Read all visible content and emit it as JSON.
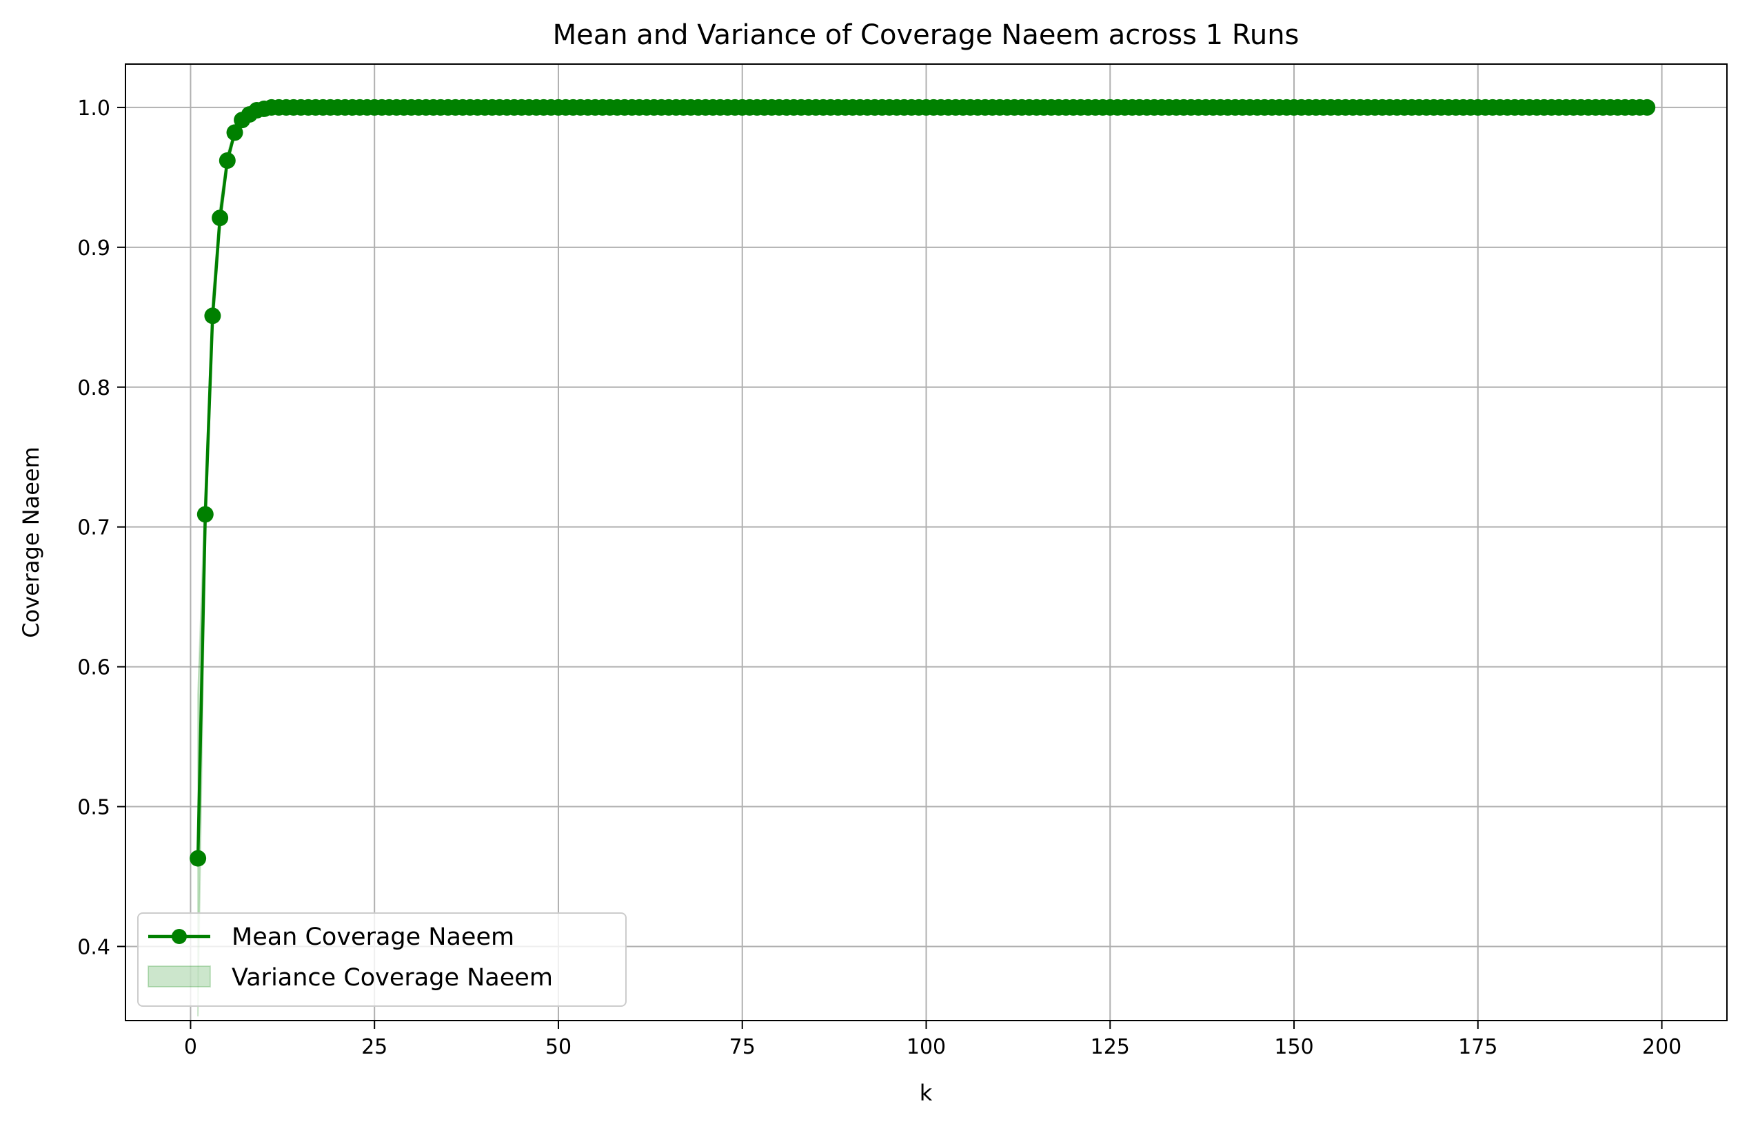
{
  "chart_data": {
    "type": "line",
    "title": "Mean and Variance of Coverage Naeem across 1 Runs",
    "xlabel": "k",
    "ylabel": "Coverage Naeem",
    "xlim": [
      -8.85,
      208.85
    ],
    "ylim": [
      0.347,
      1.031
    ],
    "xticks": [
      0,
      25,
      50,
      75,
      100,
      125,
      150,
      175,
      200
    ],
    "yticks": [
      0.4,
      0.5,
      0.6,
      0.7,
      0.8,
      0.9,
      1.0
    ],
    "xtick_labels": [
      "0",
      "25",
      "50",
      "75",
      "100",
      "125",
      "150",
      "175",
      "200"
    ],
    "ytick_labels": [
      "0.4",
      "0.5",
      "0.6",
      "0.7",
      "0.8",
      "0.9",
      "1.0"
    ],
    "grid": true,
    "legend_position": "lower-left",
    "colors": {
      "line": "#008000",
      "band": "#008000"
    },
    "series": [
      {
        "name": "Mean Coverage Naeem",
        "kind": "line-markers",
        "x_start": 1,
        "x_end": 198,
        "values_head": [
          0.463,
          0.709,
          0.851,
          0.921,
          0.962,
          0.982,
          0.991,
          0.995,
          0.998,
          0.999,
          1.0
        ],
        "plateau_value": 1.0
      },
      {
        "name": "Variance Coverage Naeem",
        "kind": "band",
        "lower_head": [
          0.35,
          0.69,
          0.838,
          0.912,
          0.957,
          0.98,
          0.99,
          0.995,
          0.998,
          0.999,
          1.0
        ],
        "upper_head": [
          0.58,
          0.73,
          0.864,
          0.93,
          0.967,
          0.984,
          0.992,
          0.996,
          0.998,
          0.999,
          1.0
        ]
      }
    ]
  }
}
